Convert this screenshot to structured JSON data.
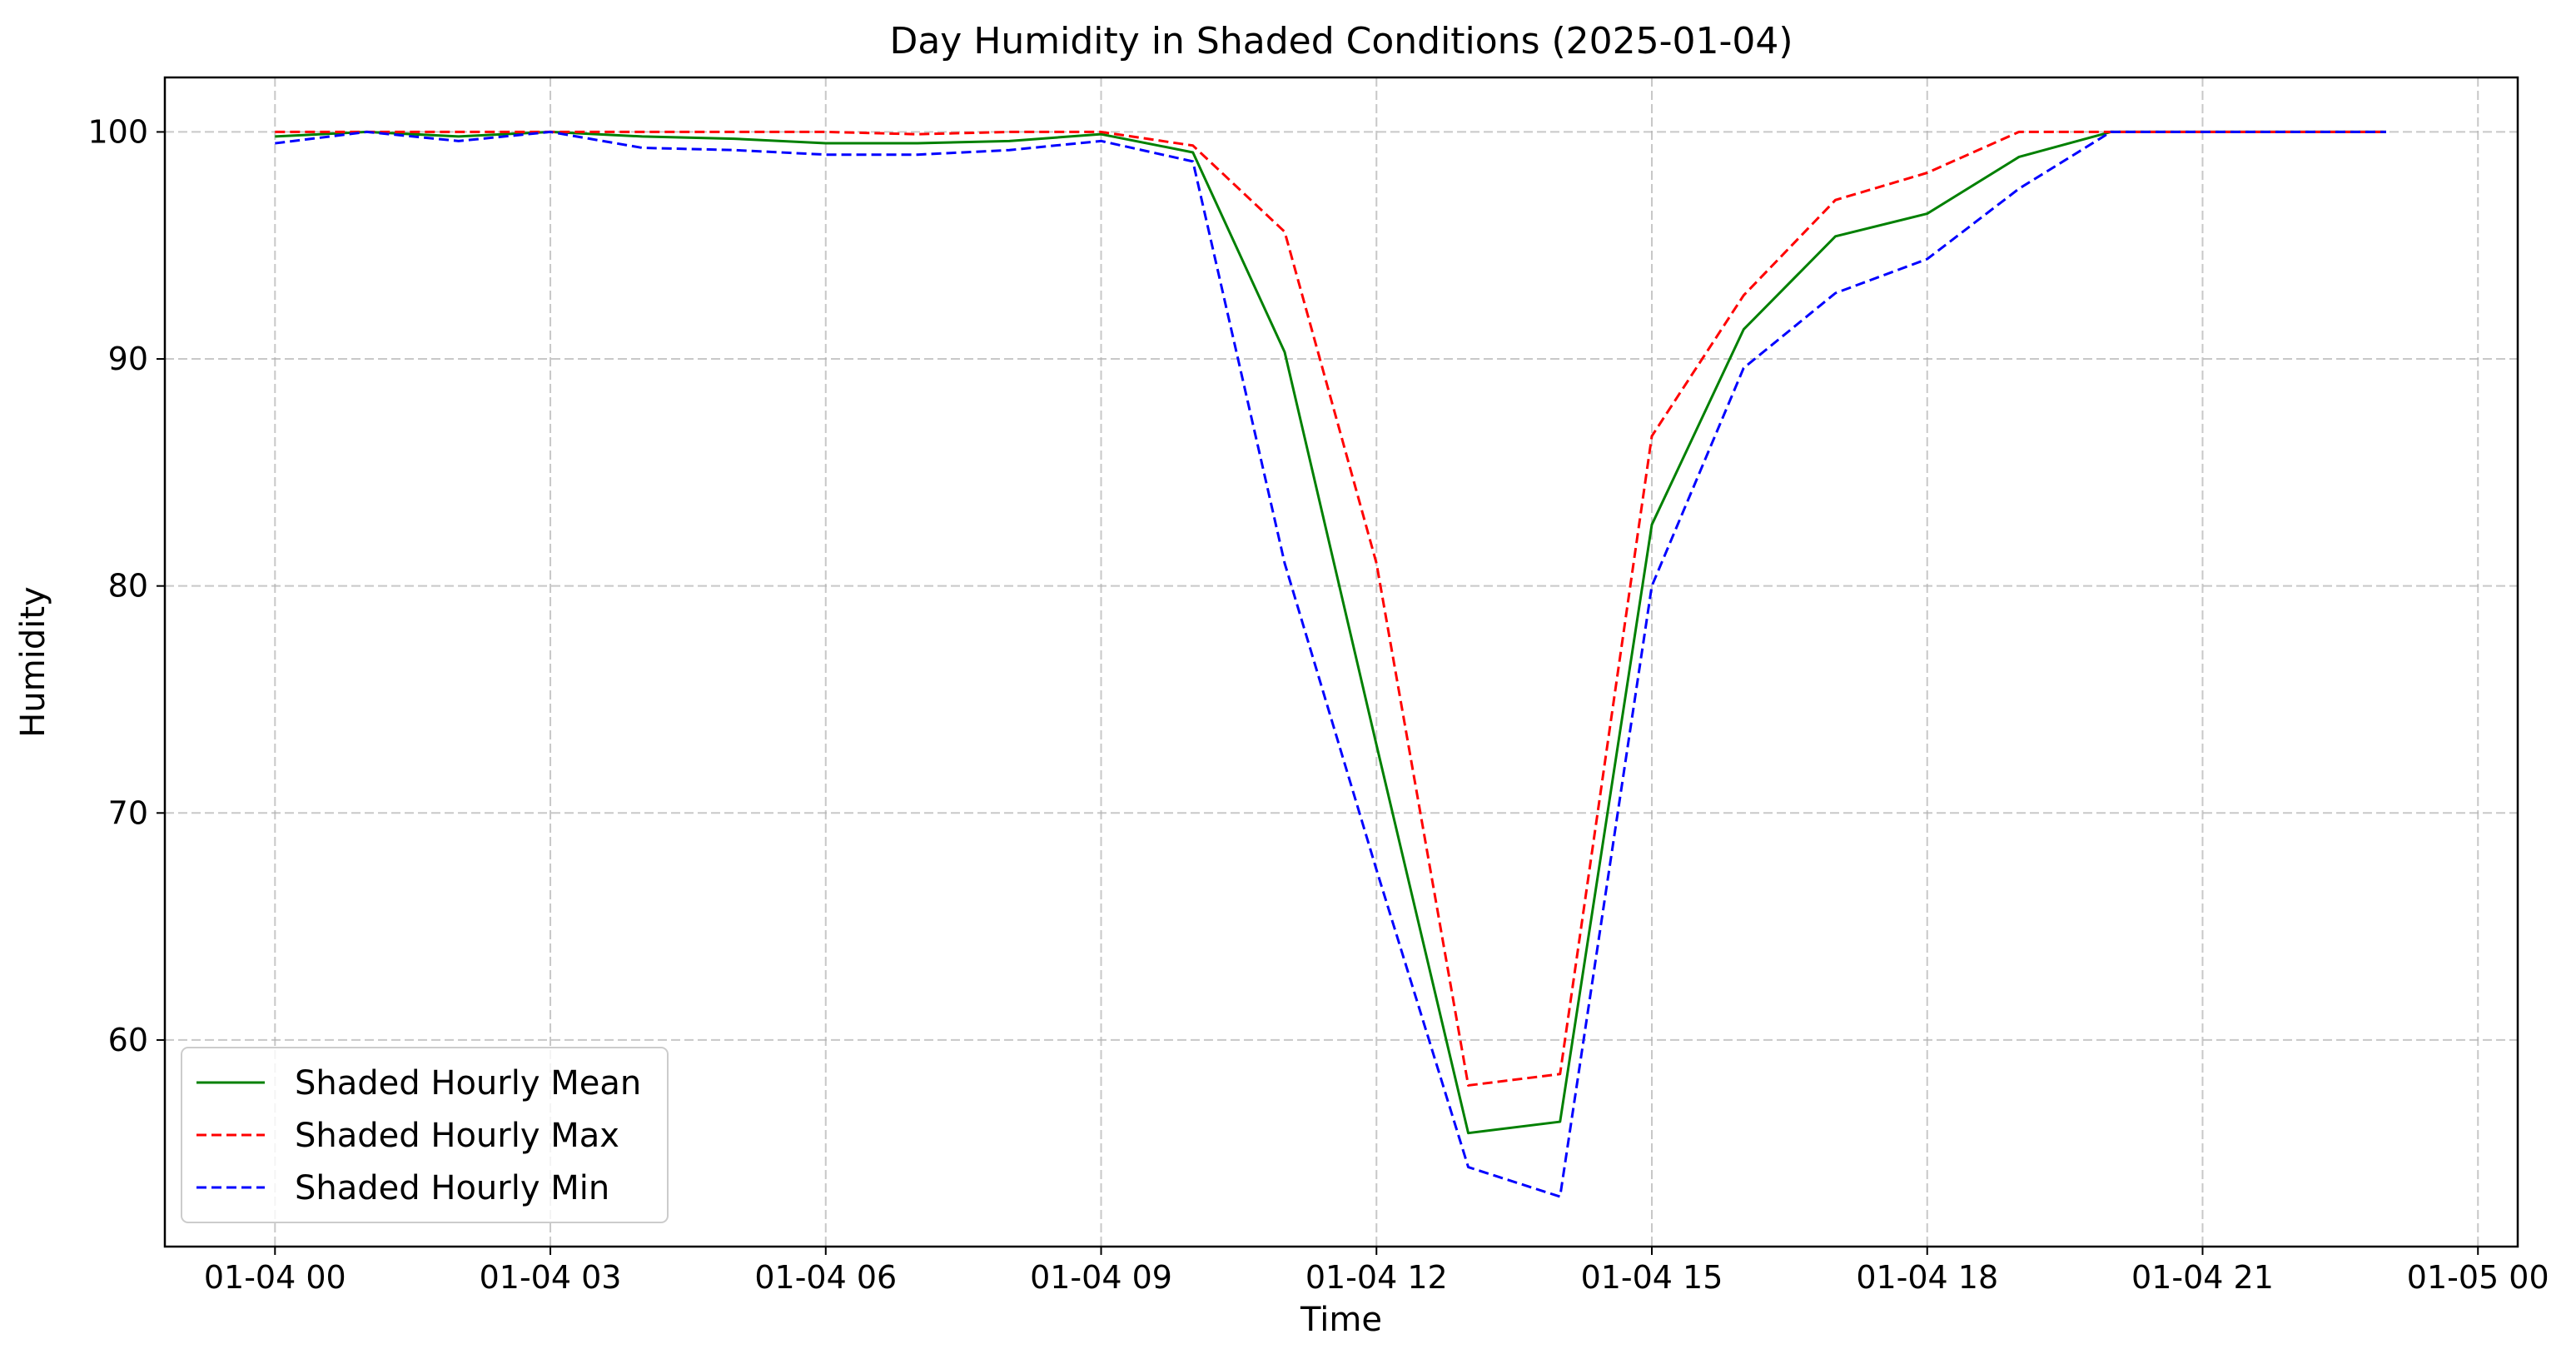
{
  "chart_data": {
    "type": "line",
    "title": "Day Humidity in Shaded Conditions (2025-01-04)",
    "xlabel": "Time",
    "ylabel": "Humidity",
    "x_axis_type": "datetime",
    "xlim": [
      "2025-01-03 22:48",
      "2025-01-05 00:26"
    ],
    "ylim": [
      50.9,
      102.4
    ],
    "x_ticks": [
      {
        "value": "2025-01-04 00:00",
        "label": "01-04 00"
      },
      {
        "value": "2025-01-04 03:00",
        "label": "01-04 03"
      },
      {
        "value": "2025-01-04 06:00",
        "label": "01-04 06"
      },
      {
        "value": "2025-01-04 09:00",
        "label": "01-04 09"
      },
      {
        "value": "2025-01-04 12:00",
        "label": "01-04 12"
      },
      {
        "value": "2025-01-04 15:00",
        "label": "01-04 15"
      },
      {
        "value": "2025-01-04 18:00",
        "label": "01-04 18"
      },
      {
        "value": "2025-01-04 21:00",
        "label": "01-04 21"
      },
      {
        "value": "2025-01-05 00:00",
        "label": "01-05 00"
      }
    ],
    "y_ticks": [
      60,
      70,
      80,
      90,
      100
    ],
    "grid": true,
    "legend_position": "lower-left",
    "x": [
      "2025-01-04 00:00",
      "2025-01-04 01:00",
      "2025-01-04 02:00",
      "2025-01-04 03:00",
      "2025-01-04 04:00",
      "2025-01-04 05:00",
      "2025-01-04 06:00",
      "2025-01-04 07:00",
      "2025-01-04 08:00",
      "2025-01-04 09:00",
      "2025-01-04 10:00",
      "2025-01-04 11:00",
      "2025-01-04 12:00",
      "2025-01-04 13:00",
      "2025-01-04 14:00",
      "2025-01-04 15:00",
      "2025-01-04 16:00",
      "2025-01-04 17:00",
      "2025-01-04 18:00",
      "2025-01-04 19:00",
      "2025-01-04 20:00",
      "2025-01-04 21:00",
      "2025-01-04 22:00",
      "2025-01-04 23:00"
    ],
    "series": [
      {
        "name": "Shaded Hourly Mean",
        "color": "#008000",
        "line_style": "solid",
        "values": [
          99.8,
          100.0,
          99.8,
          100.0,
          99.8,
          99.7,
          99.5,
          99.5,
          99.6,
          99.9,
          99.1,
          90.3,
          73.0,
          55.9,
          56.4,
          82.7,
          91.3,
          95.4,
          96.4,
          98.9,
          100.0,
          100.0,
          100.0,
          100.0
        ]
      },
      {
        "name": "Shaded Hourly Max",
        "color": "#ff0000",
        "line_style": "dashed",
        "values": [
          100.0,
          100.0,
          100.0,
          100.0,
          100.0,
          100.0,
          100.0,
          99.9,
          100.0,
          100.0,
          99.4,
          95.6,
          81.0,
          58.0,
          58.5,
          86.6,
          92.8,
          97.0,
          98.2,
          100.0,
          100.0,
          100.0,
          100.0,
          100.0
        ]
      },
      {
        "name": "Shaded Hourly Min",
        "color": "#0000ff",
        "line_style": "dashed",
        "values": [
          99.5,
          100.0,
          99.6,
          100.0,
          99.3,
          99.2,
          99.0,
          99.0,
          99.2,
          99.6,
          98.7,
          81.0,
          67.5,
          54.4,
          53.1,
          80.0,
          89.6,
          92.9,
          94.4,
          97.5,
          100.0,
          100.0,
          100.0,
          100.0
        ]
      }
    ]
  }
}
